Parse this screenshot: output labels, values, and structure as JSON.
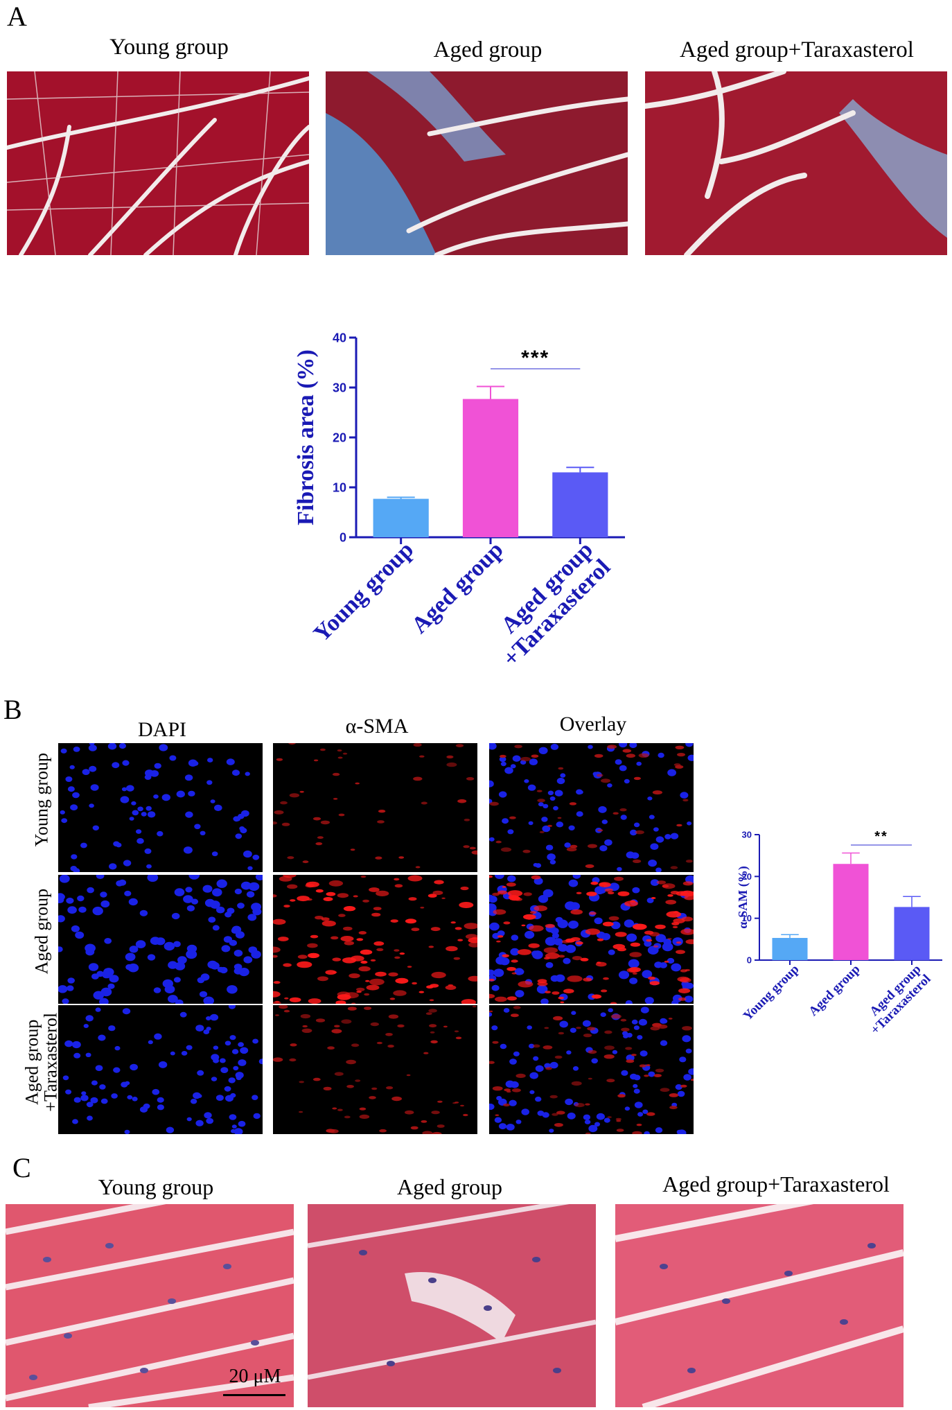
{
  "panels": {
    "a": {
      "letter": "A",
      "labels": [
        "Young group",
        "Aged group",
        "Aged group+Taraxasterol"
      ]
    },
    "b": {
      "letter": "B",
      "columns": [
        "DAPI",
        "α-SMA",
        "Overlay"
      ],
      "rows": [
        "Young group",
        "Aged group",
        "Aged group\n+Taraxasterol"
      ]
    },
    "c": {
      "letter": "C",
      "labels": [
        "Young group",
        "Aged group",
        "Aged group+Taraxasterol"
      ],
      "scale_bar": "20 μM"
    }
  },
  "chart_data": [
    {
      "type": "bar",
      "categories": [
        "Young group",
        "Aged group",
        "Aged group\n+Taraxasterol"
      ],
      "values": [
        7.7,
        27.7,
        13.0
      ],
      "errors": [
        0.3,
        2.5,
        1.0
      ],
      "ylabel": "Fibrosis area (%)",
      "ylim": [
        0,
        40
      ],
      "yticks": [
        0,
        10,
        20,
        30,
        40
      ],
      "colors": [
        "#55a8f5",
        "#f052d6",
        "#5a5af5"
      ],
      "significance": "***",
      "grid": false
    },
    {
      "type": "bar",
      "categories": [
        "Young group",
        "Aged group",
        "Aged group\n+Taraxasterol"
      ],
      "values": [
        5.3,
        23.0,
        12.7
      ],
      "errors": [
        0.8,
        2.6,
        2.5
      ],
      "ylabel": "α-SAM (%)",
      "ylim": [
        0,
        30
      ],
      "yticks": [
        0,
        10,
        20,
        30
      ],
      "colors": [
        "#55a8f5",
        "#f052d6",
        "#5a5af5"
      ],
      "significance": "**",
      "grid": false
    }
  ]
}
